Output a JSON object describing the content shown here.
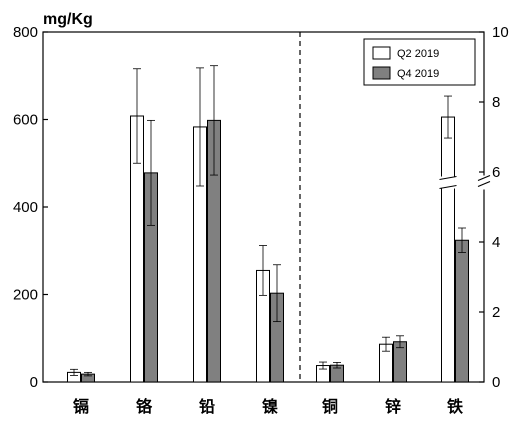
{
  "chart_data": {
    "type": "bar",
    "unit_label": "mg/Kg",
    "categories": [
      "镉",
      "铬",
      "铅",
      "镍",
      "铜",
      "锌",
      "铁"
    ],
    "left_axis": {
      "ylim": [
        0,
        800
      ],
      "ticks": [
        "0",
        "200",
        "400",
        "600",
        "800"
      ],
      "applies_to": [
        "镉",
        "铬",
        "铅",
        "镍"
      ]
    },
    "right_axis": {
      "ylim": [
        0,
        10
      ],
      "ticks": [
        "0",
        "2",
        "4",
        "6",
        "8",
        "10"
      ],
      "axis_break_between": [
        5.4,
        6
      ],
      "applies_to": [
        "铜",
        "锌",
        "铁"
      ]
    },
    "legend_position": "top-right",
    "series": [
      {
        "name": "Q2 2019",
        "fill": "#ffffff",
        "values": [
          22,
          608,
          583,
          255,
          0.47,
          1.08,
          7.57
        ],
        "error": [
          7,
          108,
          135,
          57,
          0.1,
          0.2,
          0.6
        ]
      },
      {
        "name": "Q4 2019",
        "fill": "#808080",
        "values": [
          18,
          478,
          598,
          203,
          0.48,
          1.15,
          4.05
        ],
        "error": [
          4,
          120,
          125,
          65,
          0.08,
          0.17,
          0.35
        ]
      }
    ]
  }
}
